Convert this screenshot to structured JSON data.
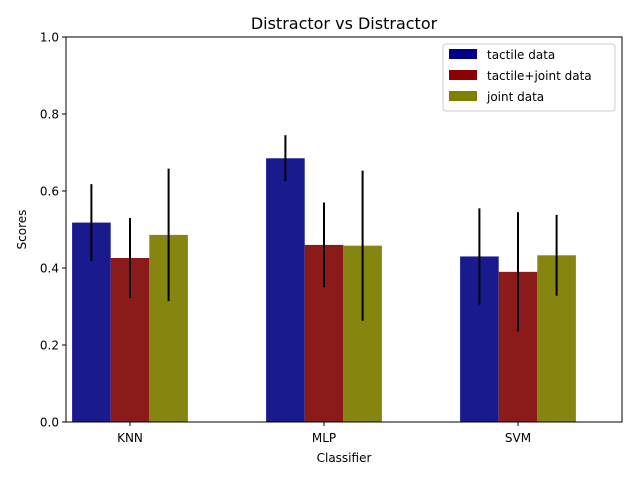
{
  "chart_data": {
    "type": "bar",
    "title": "Distractor vs Distractor",
    "xlabel": "Classifier",
    "ylabel": "Scores",
    "ylim": [
      0,
      1.0
    ],
    "yticks": [
      "0.0",
      "0.2",
      "0.4",
      "0.6",
      "0.8",
      "1.0"
    ],
    "categories": [
      "KNN",
      "MLP",
      "SVM"
    ],
    "legend_position": "top-right",
    "grid": false,
    "series": [
      {
        "name": "tactile data",
        "legend_color": "#00008b",
        "bar_color": "#1a1a8f",
        "values": [
          0.518,
          0.685,
          0.43
        ],
        "errors": [
          0.1,
          0.06,
          0.125
        ]
      },
      {
        "name": "tactile+joint data",
        "legend_color": "#8b0000",
        "bar_color": "#8b1a1a",
        "values": [
          0.426,
          0.46,
          0.39
        ],
        "errors": [
          0.104,
          0.11,
          0.155
        ]
      },
      {
        "name": "joint data",
        "legend_color": "#808000",
        "bar_color": "#85850f",
        "values": [
          0.486,
          0.458,
          0.433
        ],
        "errors": [
          0.172,
          0.195,
          0.105
        ]
      }
    ]
  }
}
